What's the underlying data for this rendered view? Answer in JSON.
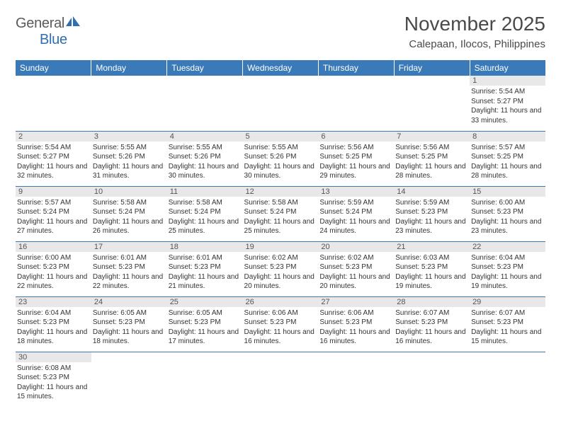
{
  "logo": {
    "word1": "General",
    "word2": "Blue"
  },
  "title": "November 2025",
  "location": "Calepaan, Ilocos, Philippines",
  "colors": {
    "header_bg": "#3a7ab8",
    "header_text": "#ffffff",
    "grid_line": "#3a7ab8",
    "daynum_bg": "#e8e8e8",
    "body_text": "#333333",
    "logo_gray": "#5a5a5a",
    "logo_blue": "#2f6fb0"
  },
  "typography": {
    "title_fontsize": 28,
    "location_fontsize": 15,
    "dayheader_fontsize": 12,
    "daynum_fontsize": 11,
    "cell_fontsize": 10
  },
  "day_headers": [
    "Sunday",
    "Monday",
    "Tuesday",
    "Wednesday",
    "Thursday",
    "Friday",
    "Saturday"
  ],
  "weeks": [
    [
      null,
      null,
      null,
      null,
      null,
      null,
      {
        "n": "1",
        "sr": "5:54 AM",
        "ss": "5:27 PM",
        "dl": "11 hours and 33 minutes."
      }
    ],
    [
      {
        "n": "2",
        "sr": "5:54 AM",
        "ss": "5:27 PM",
        "dl": "11 hours and 32 minutes."
      },
      {
        "n": "3",
        "sr": "5:55 AM",
        "ss": "5:26 PM",
        "dl": "11 hours and 31 minutes."
      },
      {
        "n": "4",
        "sr": "5:55 AM",
        "ss": "5:26 PM",
        "dl": "11 hours and 30 minutes."
      },
      {
        "n": "5",
        "sr": "5:55 AM",
        "ss": "5:26 PM",
        "dl": "11 hours and 30 minutes."
      },
      {
        "n": "6",
        "sr": "5:56 AM",
        "ss": "5:25 PM",
        "dl": "11 hours and 29 minutes."
      },
      {
        "n": "7",
        "sr": "5:56 AM",
        "ss": "5:25 PM",
        "dl": "11 hours and 28 minutes."
      },
      {
        "n": "8",
        "sr": "5:57 AM",
        "ss": "5:25 PM",
        "dl": "11 hours and 28 minutes."
      }
    ],
    [
      {
        "n": "9",
        "sr": "5:57 AM",
        "ss": "5:24 PM",
        "dl": "11 hours and 27 minutes."
      },
      {
        "n": "10",
        "sr": "5:58 AM",
        "ss": "5:24 PM",
        "dl": "11 hours and 26 minutes."
      },
      {
        "n": "11",
        "sr": "5:58 AM",
        "ss": "5:24 PM",
        "dl": "11 hours and 25 minutes."
      },
      {
        "n": "12",
        "sr": "5:58 AM",
        "ss": "5:24 PM",
        "dl": "11 hours and 25 minutes."
      },
      {
        "n": "13",
        "sr": "5:59 AM",
        "ss": "5:24 PM",
        "dl": "11 hours and 24 minutes."
      },
      {
        "n": "14",
        "sr": "5:59 AM",
        "ss": "5:23 PM",
        "dl": "11 hours and 23 minutes."
      },
      {
        "n": "15",
        "sr": "6:00 AM",
        "ss": "5:23 PM",
        "dl": "11 hours and 23 minutes."
      }
    ],
    [
      {
        "n": "16",
        "sr": "6:00 AM",
        "ss": "5:23 PM",
        "dl": "11 hours and 22 minutes."
      },
      {
        "n": "17",
        "sr": "6:01 AM",
        "ss": "5:23 PM",
        "dl": "11 hours and 22 minutes."
      },
      {
        "n": "18",
        "sr": "6:01 AM",
        "ss": "5:23 PM",
        "dl": "11 hours and 21 minutes."
      },
      {
        "n": "19",
        "sr": "6:02 AM",
        "ss": "5:23 PM",
        "dl": "11 hours and 20 minutes."
      },
      {
        "n": "20",
        "sr": "6:02 AM",
        "ss": "5:23 PM",
        "dl": "11 hours and 20 minutes."
      },
      {
        "n": "21",
        "sr": "6:03 AM",
        "ss": "5:23 PM",
        "dl": "11 hours and 19 minutes."
      },
      {
        "n": "22",
        "sr": "6:04 AM",
        "ss": "5:23 PM",
        "dl": "11 hours and 19 minutes."
      }
    ],
    [
      {
        "n": "23",
        "sr": "6:04 AM",
        "ss": "5:23 PM",
        "dl": "11 hours and 18 minutes."
      },
      {
        "n": "24",
        "sr": "6:05 AM",
        "ss": "5:23 PM",
        "dl": "11 hours and 18 minutes."
      },
      {
        "n": "25",
        "sr": "6:05 AM",
        "ss": "5:23 PM",
        "dl": "11 hours and 17 minutes."
      },
      {
        "n": "26",
        "sr": "6:06 AM",
        "ss": "5:23 PM",
        "dl": "11 hours and 16 minutes."
      },
      {
        "n": "27",
        "sr": "6:06 AM",
        "ss": "5:23 PM",
        "dl": "11 hours and 16 minutes."
      },
      {
        "n": "28",
        "sr": "6:07 AM",
        "ss": "5:23 PM",
        "dl": "11 hours and 16 minutes."
      },
      {
        "n": "29",
        "sr": "6:07 AM",
        "ss": "5:23 PM",
        "dl": "11 hours and 15 minutes."
      }
    ],
    [
      {
        "n": "30",
        "sr": "6:08 AM",
        "ss": "5:23 PM",
        "dl": "11 hours and 15 minutes."
      },
      null,
      null,
      null,
      null,
      null,
      null
    ]
  ],
  "labels": {
    "sunrise": "Sunrise: ",
    "sunset": "Sunset: ",
    "daylight": "Daylight: "
  }
}
